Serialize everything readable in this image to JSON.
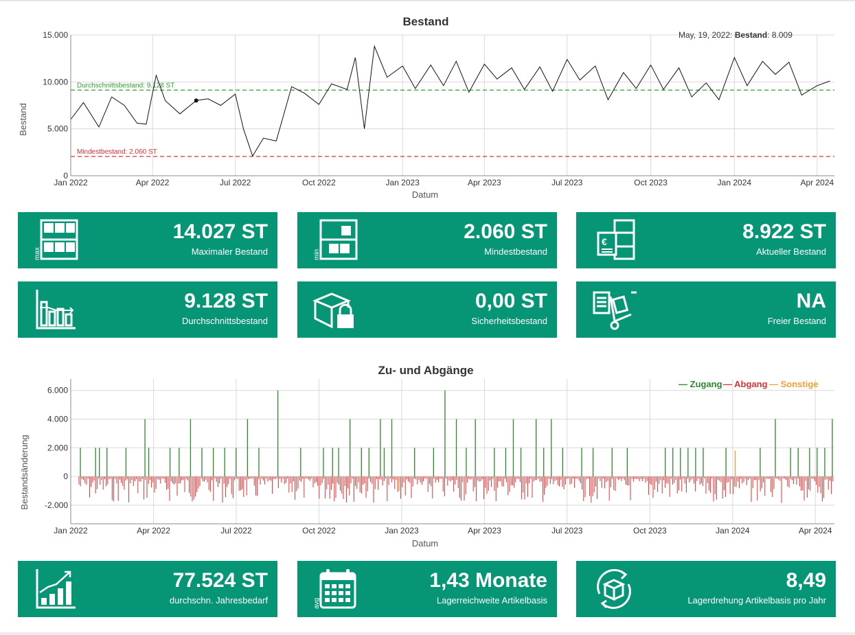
{
  "chart_data": [
    {
      "type": "line",
      "title": "Bestand",
      "xlabel": "Datum",
      "ylabel": "Bestand",
      "ylim": [
        0,
        15000
      ],
      "yticks": [
        "0",
        "5.000",
        "10.000",
        "15.000"
      ],
      "xticks": [
        "Jan 2022",
        "Apr 2022",
        "Jul 2022",
        "Oct 2022",
        "Jan 2023",
        "Apr 2023",
        "Jul 2023",
        "Oct 2023",
        "Jan 2024",
        "Apr 2024"
      ],
      "grid": true,
      "series": [
        {
          "values_note": "weekly approx",
          "x": [
            "2022-01-01",
            "2022-01-15",
            "2022-02-01",
            "2022-02-15",
            "2022-03-01",
            "2022-03-15",
            "2022-03-25",
            "2022-04-05",
            "2022-04-15",
            "2022-05-01",
            "2022-05-19",
            "2022-06-01",
            "2022-06-15",
            "2022-07-01",
            "2022-07-10",
            "2022-07-20",
            "2022-08-01",
            "2022-08-15",
            "2022-09-01",
            "2022-09-15",
            "2022-10-01",
            "2022-10-15",
            "2022-11-01",
            "2022-11-10",
            "2022-11-20",
            "2022-12-01",
            "2022-12-15",
            "2023-01-01",
            "2023-01-15",
            "2023-02-01",
            "2023-02-15",
            "2023-03-01",
            "2023-03-15",
            "2023-04-01",
            "2023-04-15",
            "2023-05-01",
            "2023-05-15",
            "2023-06-01",
            "2023-06-15",
            "2023-07-01",
            "2023-07-15",
            "2023-08-01",
            "2023-08-15",
            "2023-09-01",
            "2023-09-15",
            "2023-10-01",
            "2023-10-15",
            "2023-11-01",
            "2023-11-15",
            "2023-12-01",
            "2023-12-15",
            "2024-01-01",
            "2024-01-15",
            "2024-02-01",
            "2024-02-15",
            "2024-03-01",
            "2024-03-15",
            "2024-04-01",
            "2024-04-15"
          ],
          "values": [
            6000,
            7800,
            5200,
            8400,
            7500,
            5600,
            5500,
            10700,
            8000,
            6600,
            8009,
            8200,
            7500,
            8700,
            5000,
            2100,
            4000,
            3700,
            9500,
            8800,
            7600,
            9800,
            9200,
            12600,
            5000,
            13800,
            10500,
            11700,
            9300,
            11800,
            9600,
            12200,
            8900,
            11900,
            10300,
            11500,
            9200,
            11600,
            9000,
            12400,
            10200,
            11700,
            8100,
            11000,
            9300,
            11800,
            9200,
            11500,
            8400,
            9900,
            8100,
            12600,
            9600,
            12200,
            10800,
            12100,
            8600,
            9600,
            10100
          ]
        }
      ],
      "reference_lines": [
        {
          "label": "Durchschnittsbestand: 9.128 ST",
          "value": 9128,
          "color": "#2ca02c"
        },
        {
          "label": "Mindestbestand: 2.060 ST",
          "value": 2060,
          "color": "#e03131"
        }
      ],
      "tooltip": {
        "date": "May, 19, 2022:",
        "label": "Bestand",
        "value": "8.009"
      }
    },
    {
      "type": "bar",
      "title": "Zu- und Abgänge",
      "xlabel": "Datum",
      "ylabel": "Bestandsänderung",
      "ylim": [
        -3300,
        6800
      ],
      "yticks": [
        "-2.000",
        "0",
        "2.000",
        "4.000",
        "6.000"
      ],
      "xticks": [
        "Jan 2022",
        "Apr 2022",
        "Jul 2022",
        "Oct 2022",
        "Jan 2023",
        "Apr 2023",
        "Jul 2023",
        "Oct 2023",
        "Jan 2024",
        "Apr 2024"
      ],
      "legend_position": "top-right",
      "series": [
        {
          "name": "Zugang",
          "color": "#2a8a2a",
          "x": [
            0.01,
            0.03,
            0.035,
            0.045,
            0.07,
            0.095,
            0.1,
            0.128,
            0.14,
            0.155,
            0.17,
            0.185,
            0.2,
            0.215,
            0.23,
            0.245,
            0.27,
            0.3,
            0.33,
            0.342,
            0.35,
            0.365,
            0.38,
            0.39,
            0.405,
            0.41,
            0.42,
            0.45,
            0.475,
            0.49,
            0.505,
            0.518,
            0.53,
            0.555,
            0.57,
            0.58,
            0.59,
            0.61,
            0.62,
            0.63,
            0.645,
            0.67,
            0.685,
            0.71,
            0.73,
            0.78,
            0.79,
            0.8,
            0.81,
            0.82,
            0.83,
            0.86,
            0.905,
            0.925,
            0.945,
            0.955,
            0.97,
            0.98,
            0.99,
            1.0
          ],
          "values": [
            2000,
            2000,
            2000,
            2000,
            2000,
            4000,
            2000,
            2000,
            2000,
            4000,
            2000,
            2000,
            2000,
            2000,
            4000,
            2000,
            6000,
            2000,
            2000,
            2000,
            2000,
            4000,
            2000,
            2000,
            4000,
            2000,
            4000,
            2000,
            2000,
            6000,
            4000,
            2000,
            4000,
            2000,
            2000,
            4000,
            2000,
            4000,
            2000,
            4000,
            2000,
            2000,
            2000,
            2000,
            2000,
            2000,
            2000,
            2000,
            2000,
            2000,
            2000,
            2000,
            2000,
            4000,
            2000,
            2000,
            2000,
            2000,
            2000,
            4000
          ]
        },
        {
          "name": "Abgang",
          "color": "#e03131"
        },
        {
          "name": "Sonstige",
          "color": "#f0a030",
          "x": [
            0.43,
            0.87
          ],
          "values": [
            -1000,
            1800
          ]
        }
      ]
    }
  ],
  "kpis": [
    {
      "value": "14.027 ST",
      "label": "Maximaler Bestand",
      "icon": "shelf-max-icon"
    },
    {
      "value": "2.060 ST",
      "label": "Mindestbestand",
      "icon": "shelf-min-icon"
    },
    {
      "value": "8.922 ST",
      "label": "Aktueller Bestand",
      "icon": "stock-value-icon"
    },
    {
      "value": "9.128 ST",
      "label": "Durchschnittsbestand",
      "icon": "bar-chart-icon"
    },
    {
      "value": "0,00 ST",
      "label": "Sicherheitsbestand",
      "icon": "box-lock-icon"
    },
    {
      "value": "NA",
      "label": "Freier Bestand",
      "icon": "hand-truck-icon"
    },
    {
      "value": "77.524 ST",
      "label": "durchschn. Jahresbedarf",
      "icon": "growth-chart-icon"
    },
    {
      "value": "1,43 Monate",
      "label": "Lagerreichweite Artikelbasis",
      "icon": "calendar-avg-icon"
    },
    {
      "value": "8,49",
      "label": "Lagerdrehung Artikelbasis pro Jahr",
      "icon": "box-cycle-icon"
    }
  ],
  "colors": {
    "kpi_bg": "#079675",
    "line": "#111111",
    "grid": "#d9d9d9"
  }
}
